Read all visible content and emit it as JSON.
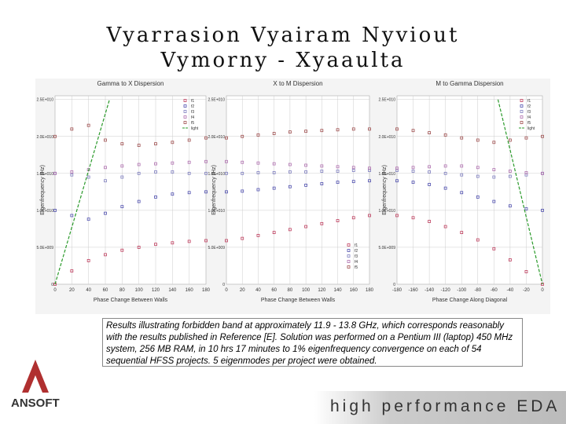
{
  "title": [
    "Vyarrasion Vyairam Nyviout",
    "Vymorny - Xyaaulta"
  ],
  "caption": "Results illustrating forbidden band at approximately 11.9 - 13.8 GHz, which corresponds reasonably with the results published in Reference [E].  Solution was performed on a Pentium III (laptop) 450 MHz system, 256 MB RAM, in 10 hrs 17 minutes to 1% eigenfrequency convergence on each of 54 sequential HFSS projects.  5 eigenmodes per project were obtained.",
  "logo": "ANSOFT",
  "footer": "high performance EDA",
  "chart_data": [
    {
      "type": "scatter",
      "title": "Gamma to X Dispersion",
      "x_label": "Phase Change Between Walls",
      "y_label": "Eigenfrequency (Hz)",
      "legend": "top-right",
      "grid": true,
      "xlim": [
        0,
        180
      ],
      "xticks": [
        0,
        20,
        40,
        60,
        80,
        100,
        120,
        140,
        160,
        180
      ],
      "ylim": [
        0,
        25500000000
      ],
      "yticks": [
        0,
        {
          "value": 5000000000,
          "label": "5.0E+009"
        },
        {
          "value": 10000000000,
          "label": "1.0E+010"
        },
        {
          "value": 15000000000,
          "label": "1.5E+010"
        },
        {
          "value": 20000000000,
          "label": "2.0E+010"
        },
        {
          "value": 25000000000,
          "label": "2.5E+010"
        }
      ],
      "x": [
        0,
        20,
        40,
        60,
        80,
        100,
        120,
        140,
        160,
        180
      ],
      "series": [
        {
          "name": "f1",
          "color": "#c04060",
          "values": [
            0,
            1800000000,
            3200000000,
            4000000000,
            4600000000,
            5000000000,
            5400000000,
            5600000000,
            5800000000,
            5900000000
          ]
        },
        {
          "name": "f2",
          "color": "#5050b0",
          "values": [
            10000000000,
            9300000000,
            8800000000,
            9600000000,
            10500000000,
            11200000000,
            11800000000,
            12200000000,
            12400000000,
            12500000000
          ]
        },
        {
          "name": "f3",
          "color": "#8080c0",
          "values": [
            15000000000,
            14800000000,
            14500000000,
            14000000000,
            14500000000,
            15000000000,
            15200000000,
            15200000000,
            15000000000,
            15000000000
          ]
        },
        {
          "name": "f4",
          "color": "#b070b0",
          "values": [
            15000000000,
            15200000000,
            15500000000,
            15800000000,
            16000000000,
            16200000000,
            16300000000,
            16400000000,
            16500000000,
            16600000000
          ]
        },
        {
          "name": "f5",
          "color": "#a05050",
          "values": [
            20000000000,
            21000000000,
            21500000000,
            19500000000,
            19000000000,
            18800000000,
            19000000000,
            19200000000,
            19500000000,
            19800000000
          ]
        },
        {
          "name": "light",
          "color": "#2a9a2a",
          "line": true,
          "x": [
            0,
            65
          ],
          "values": [
            0,
            25000000000
          ]
        }
      ]
    },
    {
      "type": "scatter",
      "title": "X to M Dispersion",
      "x_label": "Phase Change Between Walls",
      "y_label": "Eigenfrequency (Hz)",
      "legend": "bottom-right",
      "grid": true,
      "xlim": [
        0,
        180
      ],
      "xticks": [
        0,
        20,
        40,
        60,
        80,
        100,
        120,
        140,
        160,
        180
      ],
      "ylim": [
        0,
        25500000000
      ],
      "yticks": [
        0,
        {
          "value": 5000000000,
          "label": "5.0E+009"
        },
        {
          "value": 10000000000,
          "label": "1.0E+010"
        },
        {
          "value": 15000000000,
          "label": "1.5E+010"
        },
        {
          "value": 20000000000,
          "label": "2.0E+010"
        },
        {
          "value": 25000000000,
          "label": "2.5E+010"
        }
      ],
      "x": [
        0,
        20,
        40,
        60,
        80,
        100,
        120,
        140,
        160,
        180
      ],
      "series": [
        {
          "name": "f1",
          "color": "#c04060",
          "values": [
            5900000000,
            6200000000,
            6600000000,
            7000000000,
            7400000000,
            7800000000,
            8200000000,
            8600000000,
            9000000000,
            9300000000
          ]
        },
        {
          "name": "f2",
          "color": "#5050b0",
          "values": [
            12500000000,
            12600000000,
            12800000000,
            13000000000,
            13200000000,
            13400000000,
            13600000000,
            13800000000,
            13900000000,
            14000000000
          ]
        },
        {
          "name": "f3",
          "color": "#8080c0",
          "values": [
            15000000000,
            15000000000,
            15100000000,
            15100000000,
            15200000000,
            15200000000,
            15300000000,
            15300000000,
            15400000000,
            15400000000
          ]
        },
        {
          "name": "f4",
          "color": "#b070b0",
          "values": [
            16600000000,
            16500000000,
            16400000000,
            16300000000,
            16200000000,
            16100000000,
            16000000000,
            15900000000,
            15800000000,
            15700000000
          ]
        },
        {
          "name": "f5",
          "color": "#a05050",
          "values": [
            19800000000,
            20000000000,
            20200000000,
            20400000000,
            20600000000,
            20700000000,
            20800000000,
            20900000000,
            21000000000,
            21000000000
          ]
        }
      ]
    },
    {
      "type": "scatter",
      "title": "M to Gamma Dispersion",
      "x_label": "Phase Change Along Diagonal",
      "y_label": "Eigenfrequency (Hz)",
      "legend": "top-right",
      "grid": true,
      "xlim": [
        -180,
        0
      ],
      "xticks": [
        -180,
        -160,
        -140,
        -120,
        -100,
        -80,
        -60,
        -40,
        -20,
        0
      ],
      "ylim": [
        0,
        25500000000
      ],
      "yticks": [
        0,
        {
          "value": 5000000000,
          "label": "5.0E+009"
        },
        {
          "value": 10000000000,
          "label": "1.0E+010"
        },
        {
          "value": 15000000000,
          "label": "1.5E+010"
        },
        {
          "value": 20000000000,
          "label": "2.0E+010"
        },
        {
          "value": 25000000000,
          "label": "2.5E+010"
        }
      ],
      "x": [
        -180,
        -160,
        -140,
        -120,
        -100,
        -80,
        -60,
        -40,
        -20,
        0
      ],
      "series": [
        {
          "name": "f1",
          "color": "#c04060",
          "values": [
            9300000000,
            9000000000,
            8500000000,
            7800000000,
            7000000000,
            6000000000,
            4800000000,
            3300000000,
            1700000000,
            0
          ]
        },
        {
          "name": "f2",
          "color": "#5050b0",
          "values": [
            14000000000,
            13800000000,
            13500000000,
            13000000000,
            12400000000,
            11800000000,
            11200000000,
            10600000000,
            10200000000,
            10000000000
          ]
        },
        {
          "name": "f3",
          "color": "#8080c0",
          "values": [
            15400000000,
            15300000000,
            15200000000,
            15000000000,
            14800000000,
            14600000000,
            14500000000,
            14600000000,
            14800000000,
            15000000000
          ]
        },
        {
          "name": "f4",
          "color": "#b070b0",
          "values": [
            15700000000,
            15800000000,
            15900000000,
            16000000000,
            16000000000,
            15800000000,
            15500000000,
            15300000000,
            15100000000,
            15000000000
          ]
        },
        {
          "name": "f5",
          "color": "#a05050",
          "values": [
            21000000000,
            20800000000,
            20500000000,
            20200000000,
            19800000000,
            19500000000,
            19200000000,
            19500000000,
            19800000000,
            20000000000
          ]
        },
        {
          "name": "light",
          "color": "#2a9a2a",
          "line": true,
          "x": [
            -55,
            0
          ],
          "values": [
            25000000000,
            0
          ]
        }
      ]
    }
  ]
}
